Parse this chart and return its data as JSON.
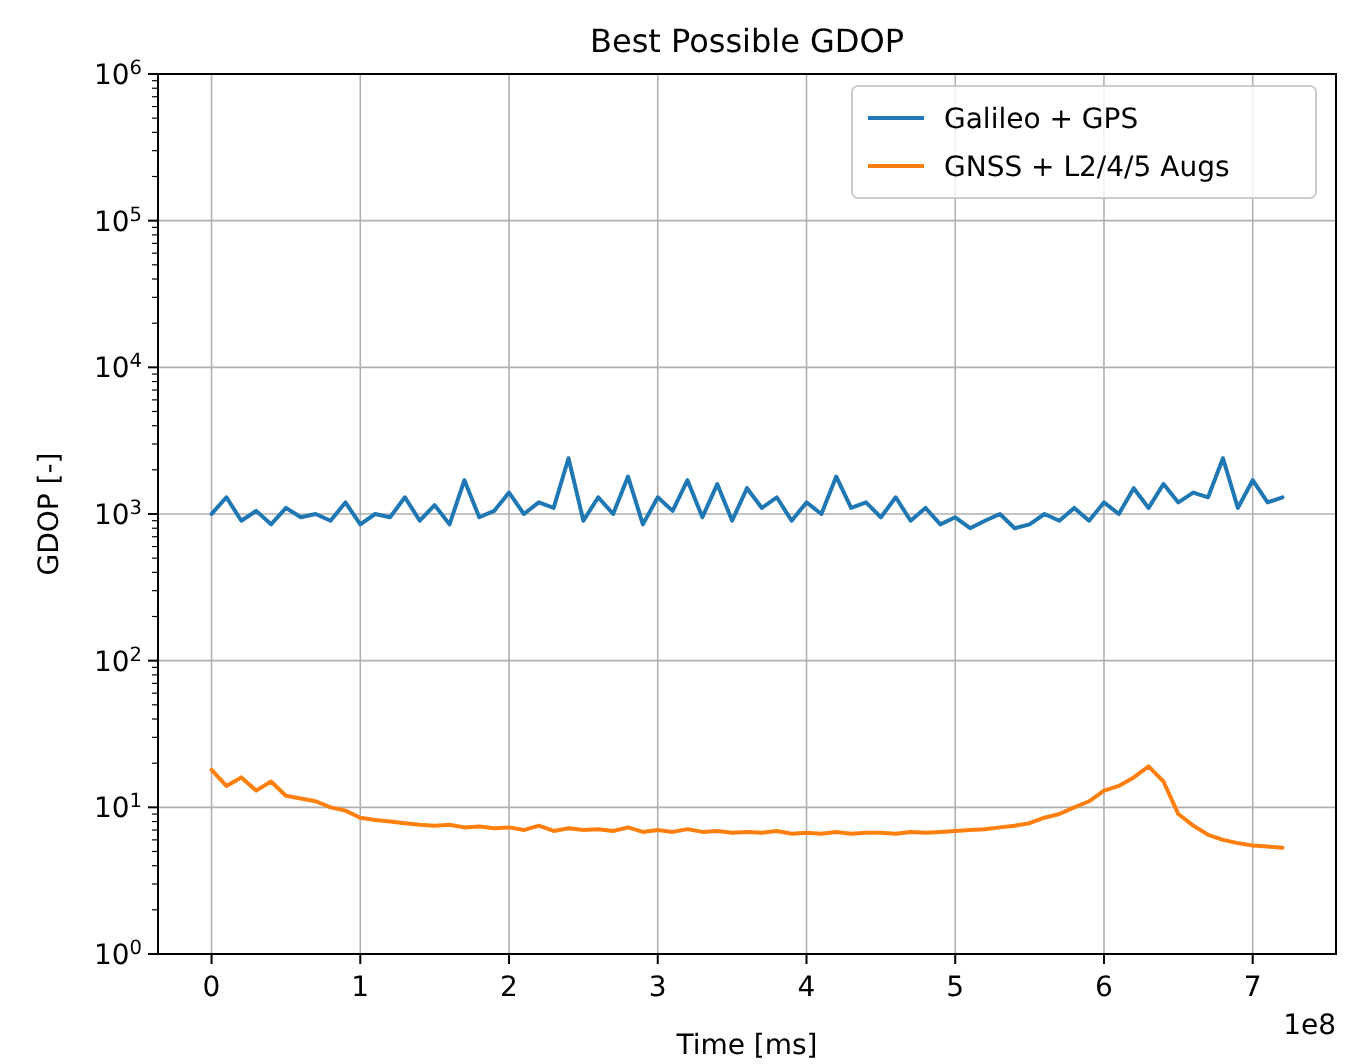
{
  "chart_data": {
    "type": "line",
    "title": "Best Possible GDOP",
    "xlabel": "Time [ms]",
    "ylabel": "GDOP [-]",
    "annotations": [
      "1e8"
    ],
    "x": [
      0,
      0.1,
      0.2,
      0.3,
      0.4,
      0.5,
      0.6,
      0.7,
      0.8,
      0.9,
      1,
      1.1,
      1.2,
      1.3,
      1.4,
      1.5,
      1.6,
      1.7,
      1.8,
      1.9,
      2,
      2.1,
      2.2,
      2.3,
      2.4,
      2.5,
      2.6,
      2.7,
      2.8,
      2.9,
      3,
      3.1,
      3.2,
      3.3,
      3.4,
      3.5,
      3.6,
      3.7,
      3.8,
      3.9,
      4,
      4.1,
      4.2,
      4.3,
      4.4,
      4.5,
      4.6,
      4.7,
      4.8,
      4.9,
      5,
      5.1,
      5.2,
      5.3,
      5.4,
      5.5,
      5.6,
      5.7,
      5.8,
      5.9,
      6,
      6.1,
      6.2,
      6.3,
      6.4,
      6.5,
      6.6,
      6.7,
      6.8,
      6.9,
      7,
      7.1,
      7.2
    ],
    "series": [
      {
        "name": "Galileo + GPS",
        "color": "#1f77b4",
        "values": [
          1000,
          1300,
          900,
          1050,
          850,
          1100,
          950,
          1000,
          900,
          1200,
          850,
          1000,
          950,
          1300,
          900,
          1150,
          850,
          1700,
          950,
          1050,
          1400,
          1000,
          1200,
          1100,
          2400,
          900,
          1300,
          1000,
          1800,
          850,
          1300,
          1050,
          1700,
          950,
          1600,
          900,
          1500,
          1100,
          1300,
          900,
          1200,
          1000,
          1800,
          1100,
          1200,
          950,
          1300,
          900,
          1100,
          850,
          950,
          800,
          900,
          1000,
          800,
          850,
          1000,
          900,
          1100,
          900,
          1200,
          1000,
          1500,
          1100,
          1600,
          1200,
          1400,
          1300,
          2400,
          1100,
          1700,
          1200,
          1300
        ]
      },
      {
        "name": "GNSS + L2/4/5 Augs",
        "color": "#ff7f0e",
        "values": [
          18,
          14,
          16,
          13,
          15,
          12,
          11.5,
          11,
          10,
          9.5,
          8.5,
          8.2,
          8,
          7.8,
          7.6,
          7.5,
          7.6,
          7.3,
          7.4,
          7.2,
          7.3,
          7,
          7.5,
          6.9,
          7.2,
          7,
          7.1,
          6.9,
          7.3,
          6.8,
          7,
          6.8,
          7.1,
          6.8,
          6.9,
          6.7,
          6.8,
          6.7,
          6.9,
          6.6,
          6.7,
          6.6,
          6.8,
          6.6,
          6.7,
          6.7,
          6.6,
          6.8,
          6.7,
          6.8,
          6.9,
          7,
          7.1,
          7.3,
          7.5,
          7.8,
          8.5,
          9,
          10,
          11,
          13,
          14,
          16,
          19,
          15,
          9,
          7.5,
          6.5,
          6,
          5.7,
          5.5,
          5.4,
          5.3
        ]
      }
    ],
    "log": "y",
    "xlim": [
      -0.36,
      7.56
    ],
    "ylim": [
      1,
      1000000
    ],
    "xticks": [
      0,
      1,
      2,
      3,
      4,
      5,
      6,
      7
    ],
    "yticks": [
      {
        "value": 1,
        "label": "10$^{0}$"
      },
      {
        "value": 10,
        "label": "10$^{1}$"
      },
      {
        "value": 100,
        "label": "10$^{2}$"
      },
      {
        "value": 1000,
        "label": "10$^{3}$"
      },
      {
        "value": 10000,
        "label": "10$^{4}$"
      },
      {
        "value": 100000,
        "label": "10$^{5}$"
      },
      {
        "value": 1000000,
        "label": "10$^{6}$"
      }
    ],
    "grid": true,
    "legend": "top right",
    "line_style": "solid",
    "marker": "none"
  }
}
